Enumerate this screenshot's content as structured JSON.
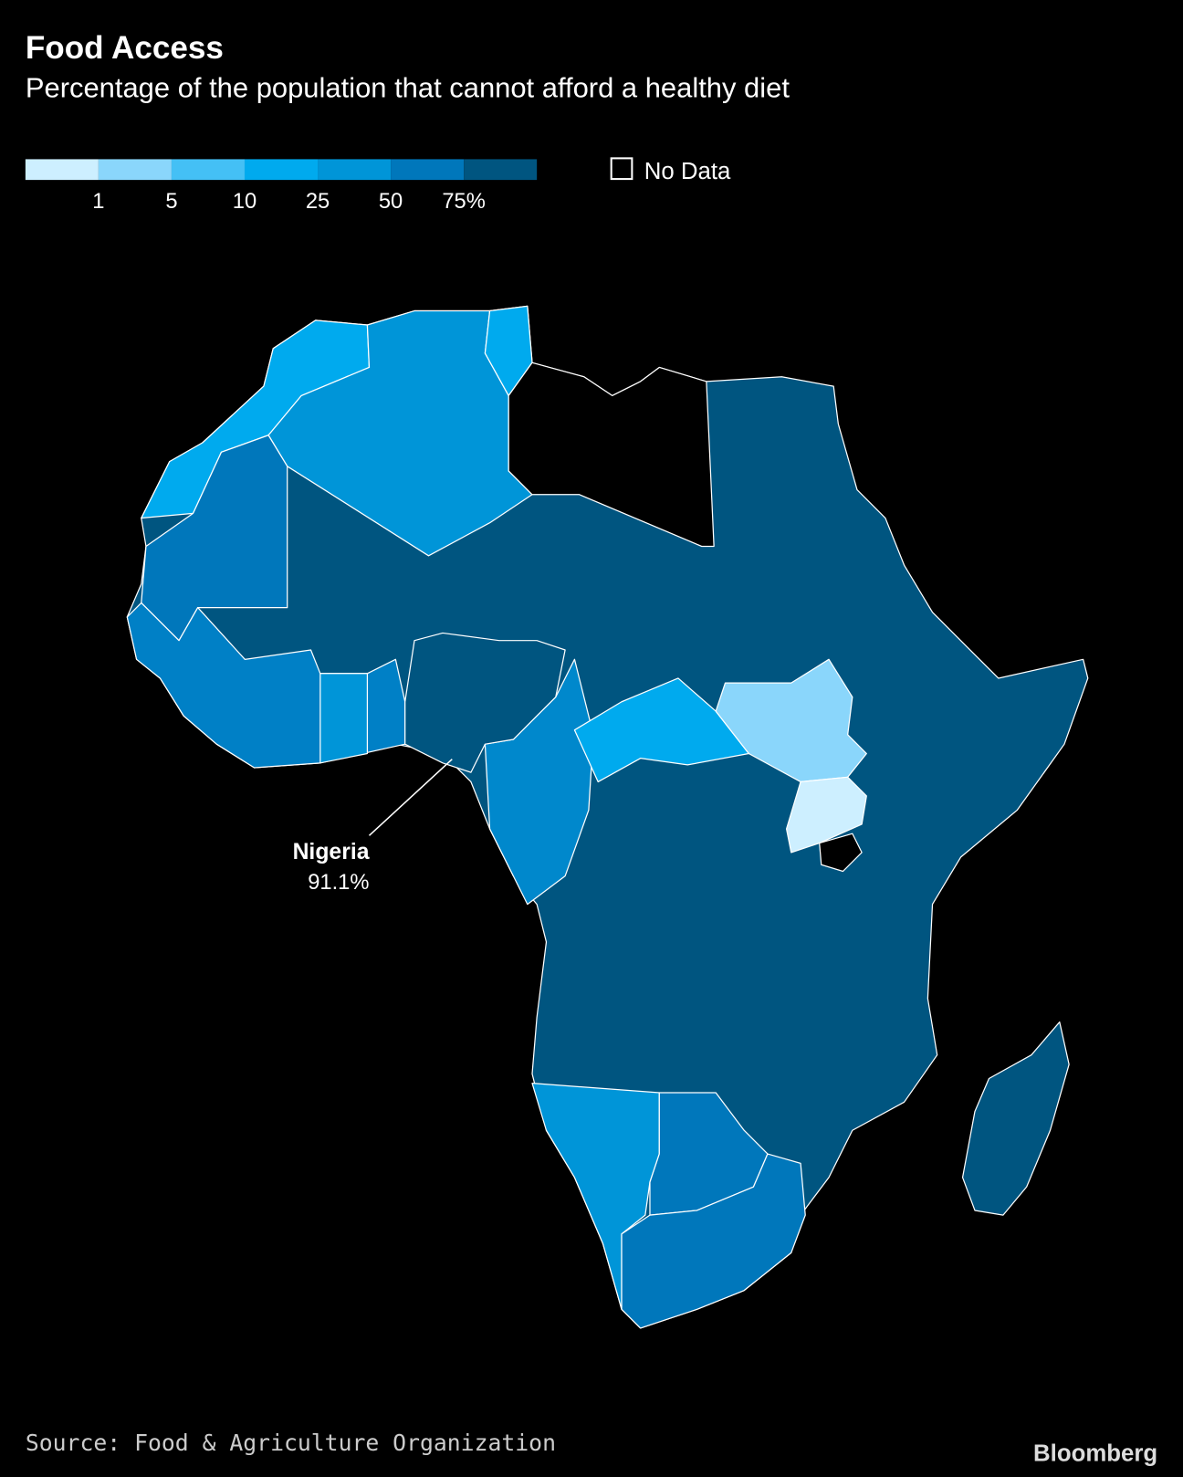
{
  "title": "Food Access",
  "subtitle": "Percentage of the population that cannot afford a healthy diet",
  "legend": {
    "colors": [
      "#cdefff",
      "#8ad6fb",
      "#44c0f5",
      "#00aaee",
      "#0095d8",
      "#0077bb",
      "#005580"
    ],
    "ticks": [
      1,
      5,
      10,
      25,
      50,
      {
        "value": 75,
        "label": "75%"
      }
    ],
    "no_data_label": "No Data"
  },
  "annotation": {
    "name": "Nigeria",
    "value": 91.1,
    "value_label": "91.1%"
  },
  "source": "Source: Food & Agriculture Organization",
  "brand": "Bloomberg"
}
